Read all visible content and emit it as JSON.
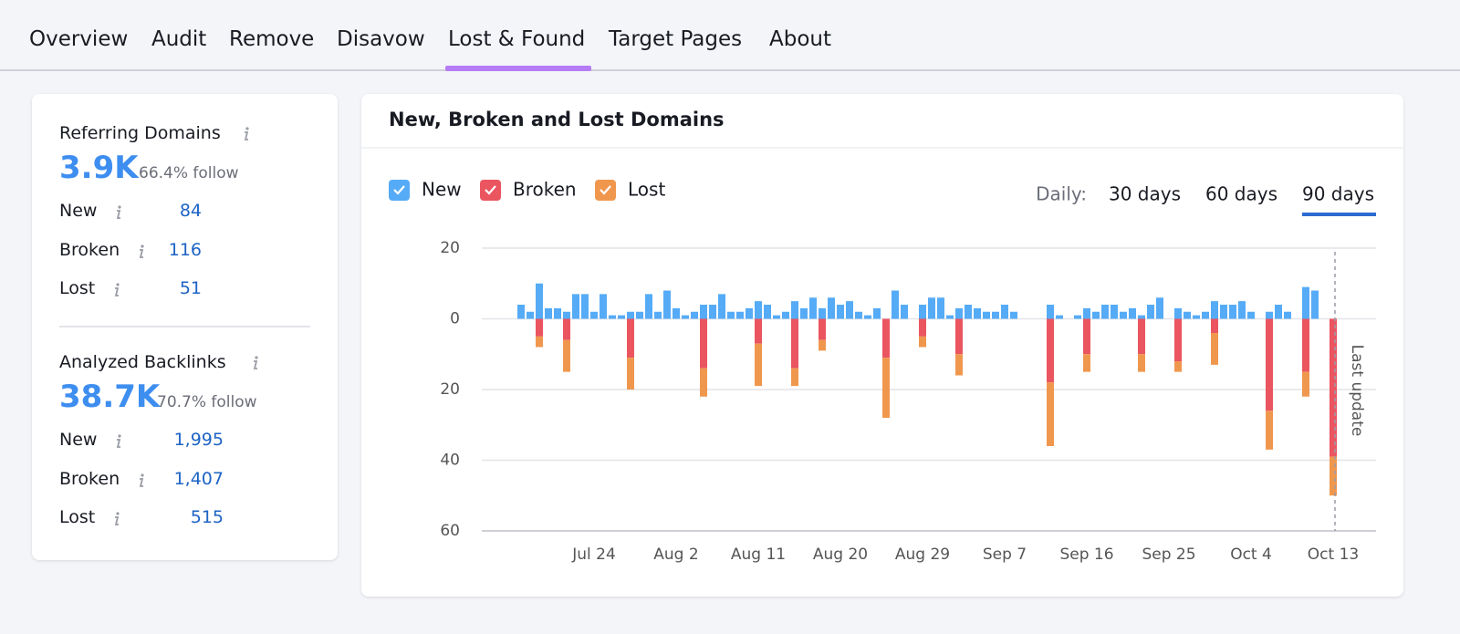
{
  "nav": {
    "tabs": [
      "Overview",
      "Audit",
      "Remove",
      "Disavow",
      "Lost & Found",
      "Target Pages",
      "About"
    ]
  },
  "summary": [
    {
      "title": "Referring Domains",
      "value": "3.9K",
      "follow": "66.4% follow",
      "rows": [
        {
          "label": "New",
          "value": "84"
        },
        {
          "label": "Broken",
          "value": "116"
        },
        {
          "label": "Lost",
          "value": "51"
        }
      ]
    },
    {
      "title": "Analyzed Backlinks",
      "value": "38.7K",
      "follow": "70.7% follow",
      "rows": [
        {
          "label": "New",
          "value": "1,995"
        },
        {
          "label": "Broken",
          "value": "1,407"
        },
        {
          "label": "Lost",
          "value": "515"
        }
      ]
    }
  ],
  "chart_data": {
    "type": "bar",
    "title": "New, Broken and Lost Domains",
    "period_label": "Daily:",
    "periods": [
      "30 days",
      "60 days",
      "90 days"
    ],
    "annotation": "Last update",
    "categories": [
      null,
      null,
      null,
      null,
      null,
      null,
      null,
      null,
      "Jul 24",
      null,
      null,
      null,
      null,
      null,
      null,
      null,
      null,
      "Aug 2",
      null,
      null,
      null,
      null,
      null,
      null,
      null,
      null,
      "Aug 11",
      null,
      null,
      null,
      null,
      null,
      null,
      null,
      null,
      "Aug 20",
      null,
      null,
      null,
      null,
      null,
      null,
      null,
      null,
      "Aug 29",
      null,
      null,
      null,
      null,
      null,
      null,
      null,
      null,
      "Sep 7",
      null,
      null,
      null,
      null,
      null,
      null,
      null,
      null,
      "Sep 16",
      null,
      null,
      null,
      null,
      null,
      null,
      null,
      null,
      "Sep 25",
      null,
      null,
      null,
      null,
      null,
      null,
      null,
      null,
      "Oct 4",
      null,
      null,
      null,
      null,
      null,
      null,
      null,
      null,
      "Oct 13"
    ],
    "series": [
      {
        "name": "New",
        "color": "#56abf6",
        "values": [
          4,
          2,
          10,
          3,
          3,
          2,
          7,
          7,
          2,
          7,
          1,
          1,
          2,
          2,
          7,
          2,
          8,
          3,
          1,
          2,
          4,
          4,
          7,
          2,
          2,
          3,
          5,
          4,
          1,
          2,
          5,
          3,
          6,
          3,
          6,
          4,
          5,
          2,
          1,
          3,
          0,
          8,
          4,
          0,
          4,
          6,
          6,
          1,
          3,
          4,
          3,
          2,
          2,
          4,
          2,
          0,
          0,
          0,
          4,
          1,
          0,
          1,
          3,
          2,
          4,
          4,
          2,
          3,
          1,
          4,
          6,
          0,
          3,
          2,
          1,
          2,
          5,
          4,
          4,
          5,
          2,
          0,
          2,
          4,
          2,
          0,
          9,
          8,
          0,
          0
        ]
      },
      {
        "name": "Broken",
        "color": "#ea5560",
        "values": [
          0,
          0,
          -5,
          0,
          0,
          -6,
          0,
          0,
          0,
          0,
          0,
          0,
          -11,
          0,
          0,
          0,
          0,
          0,
          0,
          0,
          -14,
          0,
          0,
          0,
          0,
          0,
          -7,
          0,
          0,
          0,
          -14,
          0,
          0,
          -6,
          0,
          0,
          0,
          0,
          0,
          0,
          -11,
          0,
          0,
          0,
          -5,
          0,
          0,
          0,
          -10,
          0,
          0,
          0,
          0,
          0,
          0,
          0,
          0,
          0,
          -18,
          0,
          0,
          0,
          -10,
          0,
          0,
          0,
          0,
          0,
          -10,
          0,
          0,
          0,
          -12,
          0,
          0,
          0,
          -4,
          0,
          0,
          0,
          0,
          0,
          -26,
          0,
          0,
          0,
          -15,
          0,
          0,
          -39
        ]
      },
      {
        "name": "Lost",
        "color": "#f0974e",
        "values": [
          0,
          0,
          -3,
          0,
          0,
          -9,
          0,
          0,
          0,
          0,
          0,
          0,
          -9,
          0,
          0,
          0,
          0,
          0,
          0,
          0,
          -8,
          0,
          0,
          0,
          0,
          0,
          -12,
          0,
          0,
          0,
          -5,
          0,
          0,
          -3,
          0,
          0,
          0,
          0,
          0,
          0,
          -17,
          0,
          0,
          0,
          -3,
          0,
          0,
          0,
          -6,
          0,
          0,
          0,
          0,
          0,
          0,
          0,
          0,
          0,
          -18,
          0,
          0,
          0,
          -5,
          0,
          0,
          0,
          0,
          0,
          -5,
          0,
          0,
          0,
          -3,
          0,
          0,
          0,
          -9,
          0,
          0,
          0,
          0,
          0,
          -11,
          0,
          0,
          0,
          -7,
          0,
          0,
          -11
        ]
      }
    ],
    "ylim": [
      -60,
      20
    ],
    "yticks": [
      {
        "value": -60,
        "label": "60"
      },
      {
        "value": -40,
        "label": "40"
      },
      {
        "value": -20,
        "label": "20"
      },
      0,
      20
    ],
    "grid": true
  }
}
